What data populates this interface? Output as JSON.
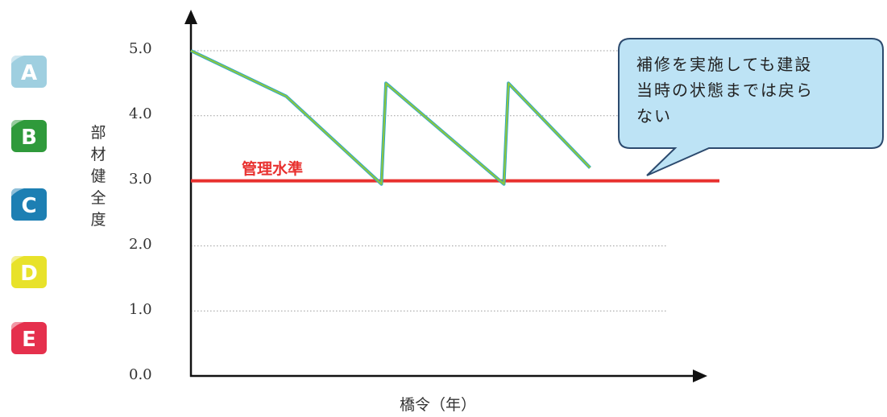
{
  "chart_data": {
    "type": "line",
    "title": "",
    "ylabel": "部材健全度",
    "xlabel": "橋令（年）",
    "yticks": [
      "5.0",
      "4.0",
      "3.0",
      "2.0",
      "1.0",
      "0.0"
    ],
    "ylim": [
      0,
      5
    ],
    "xlim": [
      0,
      100
    ],
    "grid": true,
    "series": [
      {
        "color": "#8dc63f",
        "x": [
          0,
          21,
          42,
          43,
          69,
          70,
          88
        ],
        "y": [
          5.0,
          4.3,
          2.95,
          4.5,
          2.95,
          4.5,
          3.2
        ]
      }
    ],
    "reference_line": {
      "label": "管理水準",
      "y": 3.0,
      "color": "#e8302e"
    },
    "annotation": "補修を実施しても建設当時の状態までは戻らない"
  },
  "annotation_lines": [
    "補修を実施しても建設",
    "当時の状態までは戻ら",
    "ない"
  ],
  "ylabel_chars": [
    "部",
    "材",
    "健",
    "全",
    "度"
  ],
  "grades": [
    {
      "letter": "A",
      "color": "#9fcfe0"
    },
    {
      "letter": "B",
      "color": "#2f9a3b"
    },
    {
      "letter": "C",
      "color": "#1d7fb3"
    },
    {
      "letter": "D",
      "color": "#e8e22a"
    },
    {
      "letter": "E",
      "color": "#e5304d"
    }
  ]
}
